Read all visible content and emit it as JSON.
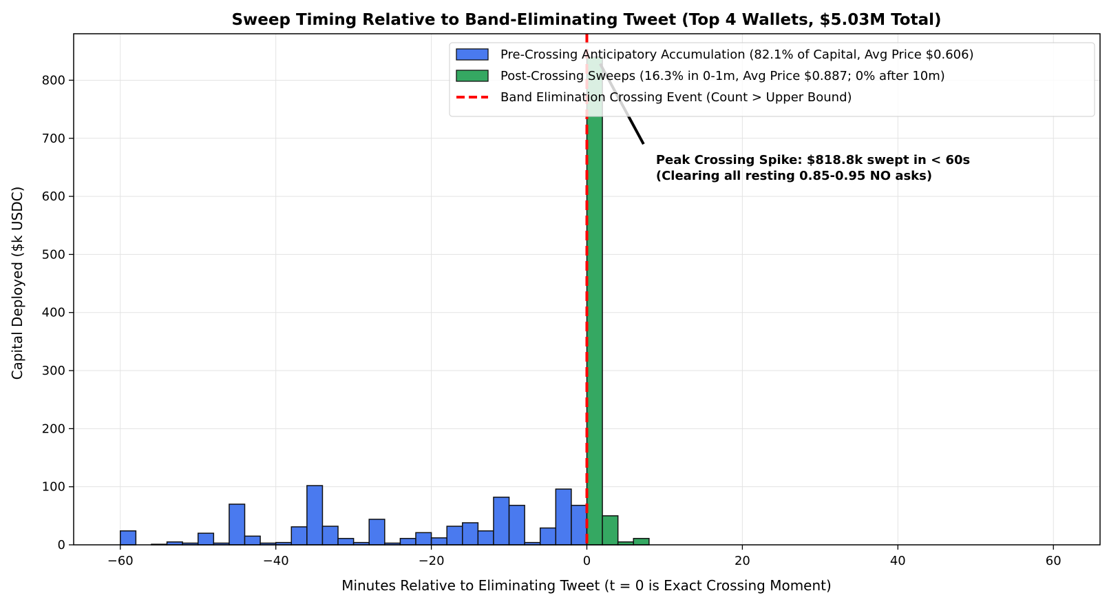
{
  "chart_data": {
    "type": "bar",
    "title": "Sweep Timing Relative to Band-Eliminating Tweet (Top 4 Wallets, $5.03M Total)",
    "xlabel": "Minutes Relative to Eliminating Tweet (t = 0 is Exact Crossing Moment)",
    "ylabel": "Capital Deployed ($k USDC)",
    "xlim": [
      -66,
      66
    ],
    "ylim": [
      0,
      880
    ],
    "grid": true,
    "legend_position": "top-right",
    "bin_width_minutes": 2,
    "x_ticks": [
      -60,
      -40,
      -20,
      0,
      20,
      40,
      60
    ],
    "x_tick_labels": [
      "−60",
      "−40",
      "−20",
      "0",
      "20",
      "40",
      "60"
    ],
    "y_ticks": [
      0,
      100,
      200,
      300,
      400,
      500,
      600,
      700,
      800
    ],
    "y_tick_labels": [
      "0",
      "100",
      "200",
      "300",
      "400",
      "500",
      "600",
      "700",
      "800"
    ],
    "series": [
      {
        "name": "Pre-Crossing Anticipatory Accumulation (82.1% of Capital, Avg Price $0.606)",
        "color": "#4a7aef",
        "bins": [
          {
            "x0": -60,
            "x1": -58,
            "value": 24
          },
          {
            "x0": -58,
            "x1": -56,
            "value": 0
          },
          {
            "x0": -56,
            "x1": -54,
            "value": 1
          },
          {
            "x0": -54,
            "x1": -52,
            "value": 5
          },
          {
            "x0": -52,
            "x1": -50,
            "value": 3
          },
          {
            "x0": -50,
            "x1": -48,
            "value": 20
          },
          {
            "x0": -48,
            "x1": -46,
            "value": 3
          },
          {
            "x0": -46,
            "x1": -44,
            "value": 70
          },
          {
            "x0": -44,
            "x1": -42,
            "value": 15
          },
          {
            "x0": -42,
            "x1": -40,
            "value": 3
          },
          {
            "x0": -40,
            "x1": -38,
            "value": 4
          },
          {
            "x0": -38,
            "x1": -36,
            "value": 31
          },
          {
            "x0": -36,
            "x1": -34,
            "value": 102
          },
          {
            "x0": -34,
            "x1": -32,
            "value": 32
          },
          {
            "x0": -32,
            "x1": -30,
            "value": 11
          },
          {
            "x0": -30,
            "x1": -28,
            "value": 4
          },
          {
            "x0": -28,
            "x1": -26,
            "value": 44
          },
          {
            "x0": -26,
            "x1": -24,
            "value": 3
          },
          {
            "x0": -24,
            "x1": -22,
            "value": 11
          },
          {
            "x0": -22,
            "x1": -20,
            "value": 21
          },
          {
            "x0": -20,
            "x1": -18,
            "value": 12
          },
          {
            "x0": -18,
            "x1": -16,
            "value": 32
          },
          {
            "x0": -16,
            "x1": -14,
            "value": 38
          },
          {
            "x0": -14,
            "x1": -12,
            "value": 24
          },
          {
            "x0": -12,
            "x1": -10,
            "value": 82
          },
          {
            "x0": -10,
            "x1": -8,
            "value": 68
          },
          {
            "x0": -8,
            "x1": -6,
            "value": 4
          },
          {
            "x0": -6,
            "x1": -4,
            "value": 29
          },
          {
            "x0": -4,
            "x1": -2,
            "value": 96
          },
          {
            "x0": -2,
            "x1": 0,
            "value": 68
          }
        ]
      },
      {
        "name": "Post-Crossing Sweeps (16.3% in 0-1m, Avg Price $0.887; 0% after 10m)",
        "color": "#35a862",
        "bins": [
          {
            "x0": 0,
            "x1": 2,
            "value": 840
          },
          {
            "x0": 2,
            "x1": 4,
            "value": 50
          },
          {
            "x0": 4,
            "x1": 6,
            "value": 5
          },
          {
            "x0": 6,
            "x1": 8,
            "value": 11
          }
        ]
      }
    ],
    "reference_line": {
      "label": "Band Elimination Crossing Event (Count > Upper Bound)",
      "x": 0,
      "color": "#ff0000",
      "style": "dashed"
    },
    "annotation": {
      "line1": "Peak Crossing Spike: $818.8k swept in < 60s",
      "line2": "(Clearing all resting 0.85-0.95 NO asks)",
      "point_x": 1,
      "point_y": 818.8,
      "text_x": 8,
      "text_y": 690
    }
  }
}
